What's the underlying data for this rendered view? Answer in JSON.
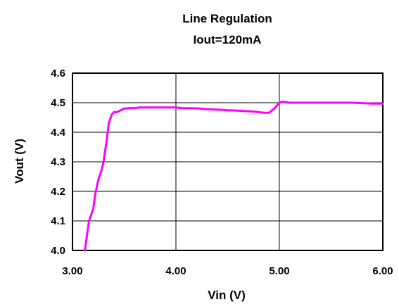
{
  "chart_data": {
    "type": "line",
    "title": "Line Regulation",
    "subtitle": "Iout=120mA",
    "xlabel": "Vin (V)",
    "ylabel": "Vout (V)",
    "xlim": [
      3.0,
      6.0
    ],
    "ylim": [
      4.0,
      4.6
    ],
    "x_ticks": [
      3.0,
      4.0,
      5.0,
      6.0
    ],
    "x_tick_labels": [
      "3.00",
      "4.00",
      "5.00",
      "6.00"
    ],
    "y_ticks": [
      4.0,
      4.1,
      4.2,
      4.3,
      4.4,
      4.5,
      4.6
    ],
    "y_tick_labels": [
      "4.0",
      "4.1",
      "4.2",
      "4.3",
      "4.4",
      "4.5",
      "4.6"
    ],
    "grid": true,
    "line_color": "#ff00ff",
    "series": [
      {
        "x": [
          3.12,
          3.16,
          3.2,
          3.22,
          3.25,
          3.28,
          3.3,
          3.33,
          3.35,
          3.38,
          3.4,
          3.43,
          3.47,
          3.5,
          3.55,
          3.6,
          3.65,
          3.8,
          4.0,
          4.05,
          4.2,
          4.3,
          4.45,
          4.5,
          4.55,
          4.65,
          4.75,
          4.85,
          4.9,
          4.95,
          5.0,
          5.03,
          5.1,
          5.3,
          5.5,
          5.7,
          5.9,
          6.0
        ],
        "y": [
          4.0,
          4.1,
          4.14,
          4.19,
          4.24,
          4.27,
          4.3,
          4.37,
          4.43,
          4.46,
          4.468,
          4.468,
          4.475,
          4.48,
          4.482,
          4.482,
          4.484,
          4.484,
          4.484,
          4.482,
          4.481,
          4.478,
          4.476,
          4.474,
          4.474,
          4.472,
          4.47,
          4.466,
          4.466,
          4.48,
          4.5,
          4.503,
          4.5,
          4.5,
          4.5,
          4.5,
          4.497,
          4.497
        ]
      }
    ]
  }
}
